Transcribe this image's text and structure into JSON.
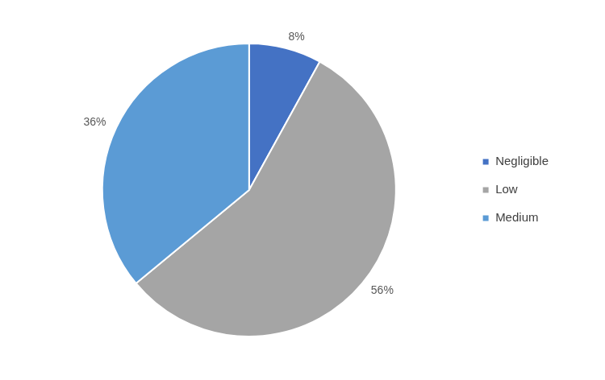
{
  "chart_data": {
    "type": "pie",
    "categories": [
      "Negligible",
      "Low",
      "Medium"
    ],
    "values": [
      8,
      56,
      36
    ],
    "value_labels": [
      "8%",
      "56%",
      "36%"
    ],
    "colors": [
      "#4472c4",
      "#a5a5a5",
      "#5b9bd5"
    ],
    "legend": "right",
    "data_labels": true
  }
}
